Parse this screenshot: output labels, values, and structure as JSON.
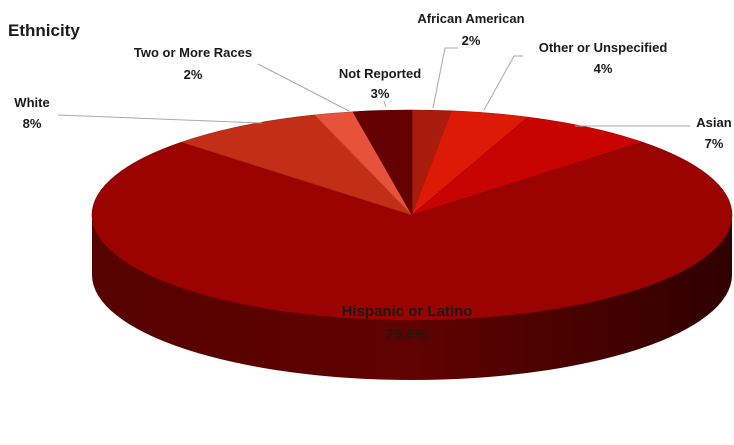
{
  "chart_data": {
    "type": "pie",
    "title": "Ethnicity",
    "style": "3d",
    "slices": [
      {
        "label": "African American",
        "value_label": "2%",
        "value": 2.0,
        "color": "#a81c0e"
      },
      {
        "label": "Other or Unspecified",
        "value_label": "4%",
        "value": 4.0,
        "color": "#dd1a06"
      },
      {
        "label": "Asian",
        "value_label": "7%",
        "value": 7.0,
        "color": "#c80400"
      },
      {
        "label": "Hispanic or Latino",
        "value_label": "75.6%",
        "value": 75.6,
        "color": "#9b0300"
      },
      {
        "label": "White",
        "value_label": "8%",
        "value": 8.0,
        "color": "#c22e16"
      },
      {
        "label": "Two or More Races",
        "value_label": "2%",
        "value": 2.0,
        "color": "#e6523a"
      },
      {
        "label": "Not Reported",
        "value_label": "3%",
        "value": 3.0,
        "color": "#650000"
      }
    ]
  }
}
